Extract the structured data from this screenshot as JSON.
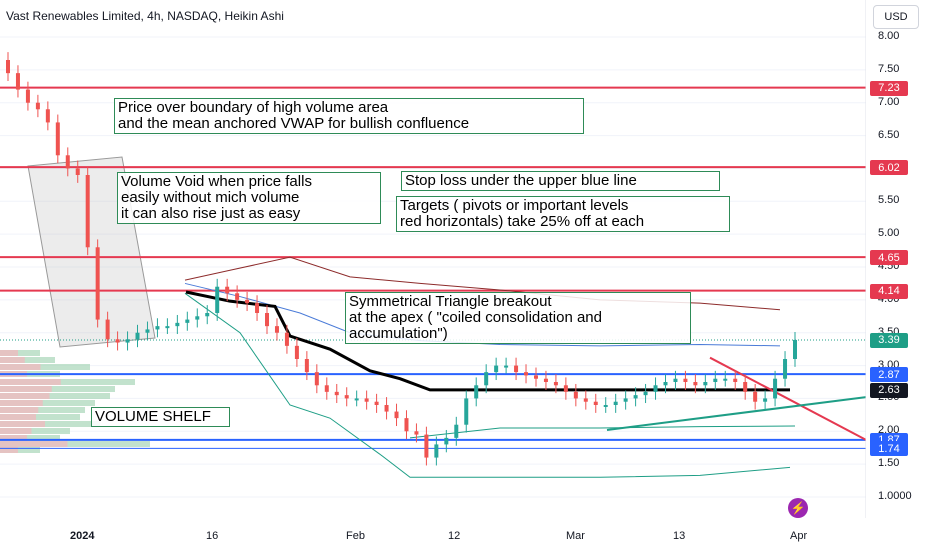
{
  "header": {
    "title": "Vast Renewables Limited, 4h, NASDAQ, Heikin Ashi",
    "currency": "USD"
  },
  "annotations": {
    "note1": [
      "Price over boundary of high volume area",
      "and the mean anchored VWAP for bullish confluence"
    ],
    "note2": [
      "Volume Void when price falls",
      "easily without mich volume",
      "it can also rise just as easy"
    ],
    "note3": [
      "Stop loss under the upper blue line"
    ],
    "note4": [
      "Targets ( pivots or important levels",
      "red horizontals) take 25% off at each"
    ],
    "note5": [
      "Symmetrical Triangle breakout",
      "at the apex ( \"coiled consolidation and",
      "accumulation\")"
    ],
    "note6": [
      "VOLUME SHELF"
    ]
  },
  "colors": {
    "red": "#e53950",
    "blue": "#2962ff",
    "black": "#000000",
    "green": "#1e9e86",
    "candle_up": "#26a69a",
    "candle_down": "#ef5350",
    "vwap_upper": "#8d2b2b",
    "vwap_blue": "#4a7bd8",
    "vwap_lower": "#1e9e86",
    "tag_dark": "#131722",
    "flash": "#9c27b0"
  },
  "flash_icon": "lightning-icon",
  "chart_data": {
    "type": "candlestick",
    "title": "Vast Renewables Limited, 4h, NASDAQ, Heikin Ashi",
    "ylim": [
      0.8,
      8.2
    ],
    "y_ticks": [
      "8.00",
      "7.50",
      "7.00",
      "6.50",
      "6.00",
      "5.50",
      "5.00",
      "4.50",
      "4.00",
      "3.50",
      "3.00",
      "2.50",
      "2.00",
      "1.50",
      "1.0000"
    ],
    "x_ticks": [
      "2024",
      "16",
      "Feb",
      "12",
      "Mar",
      "13",
      "Apr"
    ],
    "price_levels": [
      {
        "label": "7.23",
        "value": 7.23,
        "color": "red"
      },
      {
        "label": "6.02",
        "value": 6.02,
        "color": "red"
      },
      {
        "label": "4.65",
        "value": 4.65,
        "color": "red"
      },
      {
        "label": "4.14",
        "value": 4.14,
        "color": "red"
      },
      {
        "label": "3.39",
        "value": 3.39,
        "color": "green"
      },
      {
        "label": "2.87",
        "value": 2.87,
        "color": "blue"
      },
      {
        "label": "2.63",
        "value": 2.63,
        "color": "black"
      },
      {
        "label": "1.87",
        "value": 1.87,
        "color": "blue"
      },
      {
        "label": "1.74",
        "value": 1.74,
        "color": "blue"
      }
    ],
    "close_series": [
      7.45,
      7.2,
      7.0,
      6.9,
      6.7,
      6.2,
      6.0,
      5.9,
      4.8,
      3.7,
      3.4,
      3.35,
      3.4,
      3.5,
      3.55,
      3.6,
      3.6,
      3.65,
      3.7,
      3.75,
      3.8,
      4.2,
      4.1,
      4.0,
      3.95,
      3.8,
      3.6,
      3.5,
      3.3,
      3.1,
      2.9,
      2.7,
      2.6,
      2.55,
      2.5,
      2.5,
      2.45,
      2.4,
      2.3,
      2.2,
      2.0,
      1.95,
      1.6,
      1.8,
      1.9,
      2.1,
      2.5,
      2.7,
      2.9,
      3.0,
      3.0,
      2.9,
      2.85,
      2.8,
      2.75,
      2.7,
      2.6,
      2.5,
      2.45,
      2.4,
      2.4,
      2.45,
      2.5,
      2.55,
      2.6,
      2.7,
      2.75,
      2.8,
      2.75,
      2.7,
      2.75,
      2.8,
      2.8,
      2.75,
      2.6,
      2.45,
      2.5,
      2.8,
      3.1,
      3.39
    ]
  }
}
